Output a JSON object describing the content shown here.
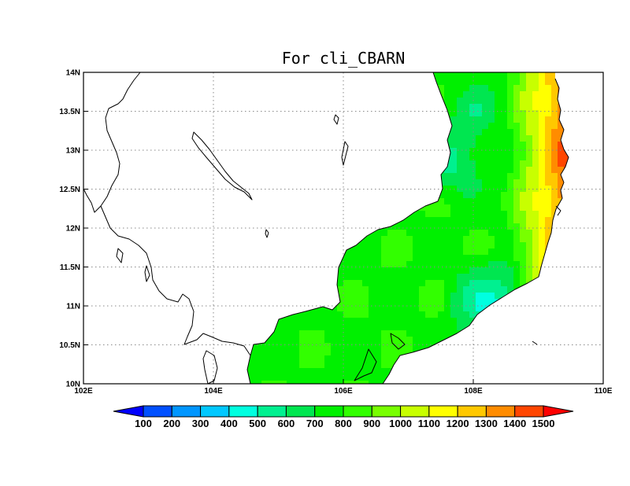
{
  "title": "For cli_CBARN",
  "map": {
    "lon_range": [
      102,
      110
    ],
    "lat_range": [
      10,
      14
    ],
    "lon_ticks": [
      {
        "value": 102,
        "label": "102E"
      },
      {
        "value": 104,
        "label": "104E"
      },
      {
        "value": 106,
        "label": "106E"
      },
      {
        "value": 108,
        "label": "108E"
      },
      {
        "value": 110,
        "label": "110E"
      }
    ],
    "lat_ticks": [
      {
        "value": 10,
        "label": "10N"
      },
      {
        "value": 10.5,
        "label": "10.5N"
      },
      {
        "value": 11,
        "label": "11N"
      },
      {
        "value": 11.5,
        "label": "11.5N"
      },
      {
        "value": 12,
        "label": "12N"
      },
      {
        "value": 12.5,
        "label": "12.5N"
      },
      {
        "value": 13,
        "label": "13N"
      },
      {
        "value": 13.5,
        "label": "13.5N"
      },
      {
        "value": 14,
        "label": "14N"
      }
    ],
    "grid": true
  },
  "colorbar": {
    "levels": [
      "100",
      "200",
      "300",
      "400",
      "500",
      "600",
      "700",
      "800",
      "900",
      "1000",
      "1100",
      "1200",
      "1300",
      "1400",
      "1500"
    ],
    "colors": [
      "#0000ff",
      "#0050ff",
      "#0096ff",
      "#00c8ff",
      "#00ffe0",
      "#00f090",
      "#00e650",
      "#00f000",
      "#32ff00",
      "#78ff00",
      "#c8ff00",
      "#ffff00",
      "#ffc800",
      "#ff8c00",
      "#ff4600",
      "#ff0000"
    ]
  }
}
